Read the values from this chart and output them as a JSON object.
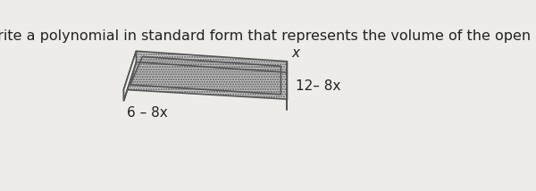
{
  "title": "Write a polynomial in standard form that represents the volume of the open box.",
  "title_fontsize": 11.5,
  "title_color": "#222222",
  "bg_color": "#eeece8",
  "label_x": "x",
  "label_length": "12– 8x",
  "label_width": "6 – 8x",
  "box": {
    "edge_color": "#555555",
    "line_width": 1.2,
    "wall_color": "#f2f2f2",
    "side_color": "#e0e0e0",
    "inner_color": "#c8c8c8",
    "dotted_color": "#999999",
    "front_face_color": "#f5f5f5",
    "right_face_color": "#e8e8e8"
  }
}
